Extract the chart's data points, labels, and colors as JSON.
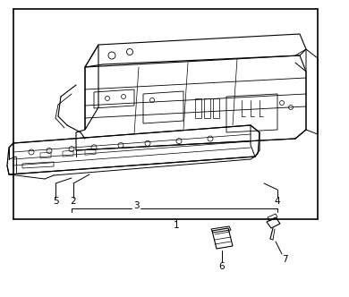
{
  "background_color": "#ffffff",
  "line_color": "#000000",
  "fig_width": 3.9,
  "fig_height": 3.32,
  "dpi": 100,
  "font_size": 7.5
}
